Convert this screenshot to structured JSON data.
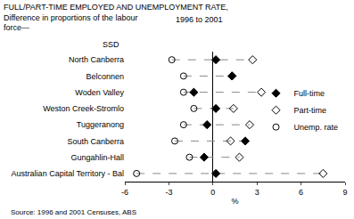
{
  "chart_data": {
    "type": "dot",
    "title": "FULL/PART-TIME EMPLOYED AND UNEMPLOYMENT RATE,\nDifference in proportions of the labour\nforce—",
    "subtitle": "1996 to 2001",
    "ylabel": "SSD",
    "xlabel": "%",
    "source": "Source: 1996 and 2001 Censuses, ABS",
    "orientation": "horizontal",
    "categories": [
      "North Canberra",
      "Belconnen",
      "Woden Valley",
      "Weston Creek-Stromlo",
      "Tuggeranong",
      "South Canberra",
      "Gungahlin-Hall",
      "Australian Capital Territory - Bal"
    ],
    "series": [
      {
        "name": "Full-time",
        "color": "#000000",
        "marker": "diamond",
        "values": [
          0.2,
          1.3,
          -1.3,
          0.2,
          -0.4,
          2.2,
          -0.6,
          0.2
        ]
      },
      {
        "name": "Part-time",
        "color": "#000000",
        "marker": "diamond-open",
        "values": [
          2.7,
          1.3,
          3.3,
          1.4,
          2.5,
          1.2,
          1.8,
          7.5
        ]
      },
      {
        "name": "Unemp. rate",
        "color": "#000000",
        "marker": "circle-open",
        "values": [
          -2.8,
          -2.0,
          -2.0,
          -1.3,
          -2.0,
          -2.6,
          -1.6,
          -5.2
        ]
      }
    ],
    "xlim": [
      -6,
      9
    ],
    "xticks": [
      -6,
      -3,
      0,
      3,
      6,
      9
    ],
    "grid": false,
    "legend": "right"
  }
}
